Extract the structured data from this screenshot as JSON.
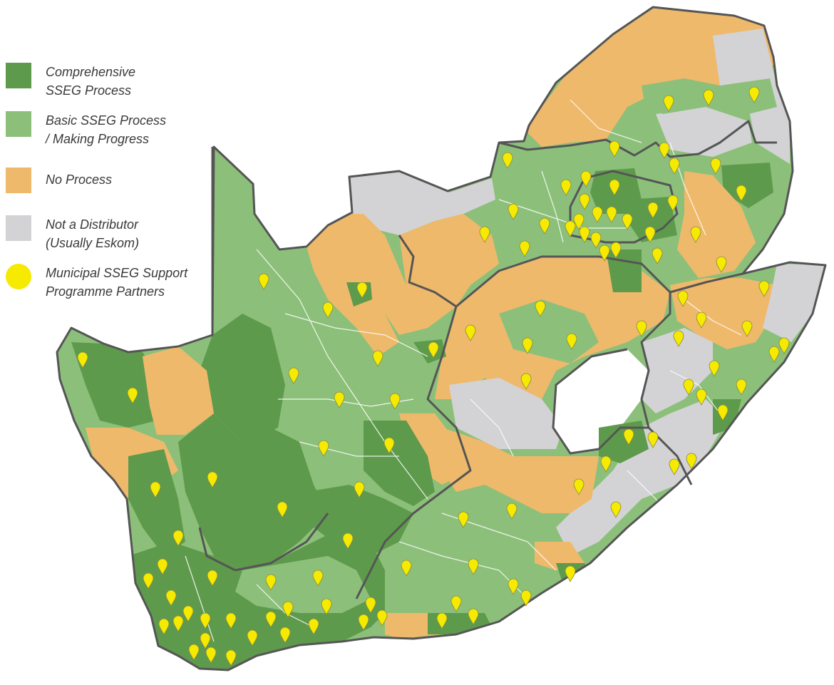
{
  "colors": {
    "comprehensive": "#5e9a4c",
    "basic": "#8cc07a",
    "no_process": "#efb96c",
    "not_distributor": "#d3d3d6",
    "partner_marker": "#f5ea00",
    "border": "#555555"
  },
  "legend": {
    "comprehensive": {
      "line1": "Comprehensive",
      "line2": "SSEG Process"
    },
    "basic": {
      "line1": "Basic SSEG Process",
      "line2": "/ Making Progress"
    },
    "no_process": {
      "line1": "No Process"
    },
    "not_distributor": {
      "line1": "Not a Distributor",
      "line2": "(Usually Eskom)"
    },
    "partners": {
      "line1": "Municipal SSEG Support",
      "line2": "Programme Partners"
    }
  }
}
